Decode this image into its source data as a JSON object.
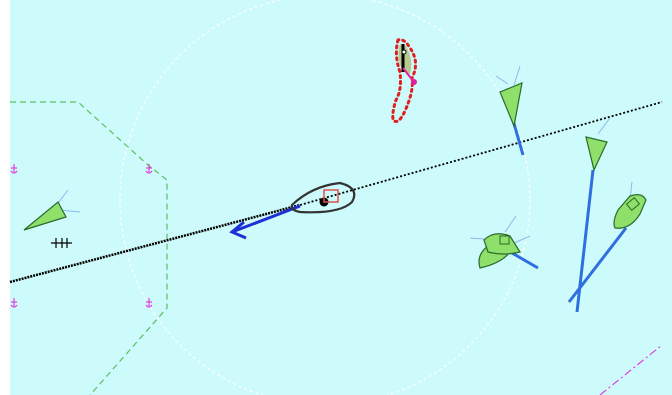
{
  "window": {
    "frame_color": "#ffffff"
  },
  "chart": {
    "sea_color": "#cdfbfb",
    "range_ring_color": "#ffffff",
    "zone_color": "#5cbf5c",
    "route_color": "#000000",
    "anchorage_color": "#e040e0",
    "boundary_color": "#e040e0",
    "wreck_symbol": "+++",
    "own_ship": {
      "hull_color": "#000000",
      "heading_vector_color": "#1f2fd6",
      "cursor_color": "#e05050"
    },
    "targets": [
      {
        "id": "target-1",
        "icon": "triangle-target-icon",
        "fill": "#8ee06a",
        "vector_color": "#2f6fe0"
      },
      {
        "id": "target-2",
        "icon": "triangle-target-icon",
        "fill": "#8ee06a",
        "vector_color": "#2f6fe0"
      },
      {
        "id": "target-3",
        "icon": "triangle-target-icon",
        "fill": "#8ee06a",
        "vector_color": "#2f6fe0"
      },
      {
        "id": "target-4",
        "icon": "ship-target-icon",
        "fill": "#8ee06a",
        "vector_color": "#2f6fe0"
      },
      {
        "id": "target-5",
        "icon": "ship-target-icon",
        "fill": "#8ee06a",
        "vector_color": "#2f6fe0"
      }
    ],
    "hazard": {
      "icon": "danger-area-icon",
      "outline_color": "#e02020",
      "fill": "#b8c98f",
      "marker_color": "#e020a0"
    }
  }
}
